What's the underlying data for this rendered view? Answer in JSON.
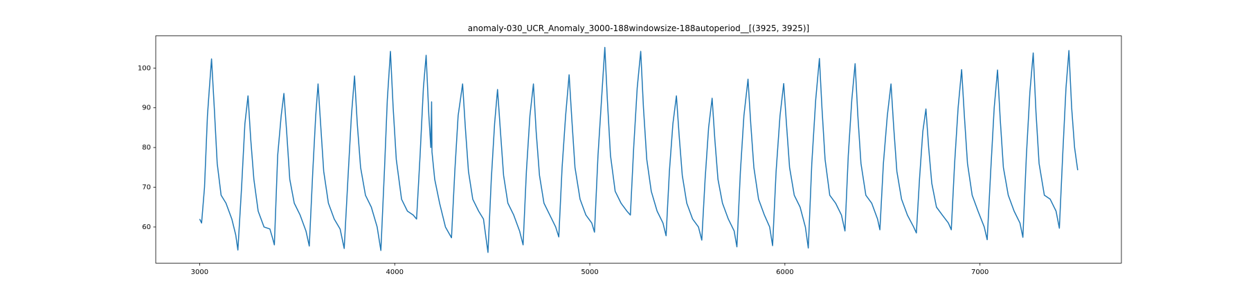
{
  "chart_data": {
    "type": "line",
    "title": "anomaly-030_UCR_Anomaly_3000-188windowsize-188autoperiod__[(3925, 3925)]",
    "color": "#1f77b4",
    "xlim": [
      2775,
      7725
    ],
    "xticks": [
      3000,
      4000,
      5000,
      6000,
      7000
    ],
    "ylim": [
      50.9,
      108.1
    ],
    "yticks": [
      60,
      70,
      80,
      90,
      100
    ],
    "x": [
      3000,
      3010,
      3025,
      3040,
      3050,
      3061,
      3075,
      3090,
      3110,
      3135,
      3165,
      3185,
      3196,
      3215,
      3232,
      3248,
      3262,
      3278,
      3300,
      3330,
      3360,
      3375,
      3383,
      3400,
      3418,
      3432,
      3446,
      3462,
      3485,
      3515,
      3545,
      3562,
      3580,
      3595,
      3607,
      3620,
      3636,
      3660,
      3690,
      3720,
      3741,
      3760,
      3778,
      3794,
      3808,
      3825,
      3850,
      3880,
      3910,
      3929,
      3948,
      3962,
      3978,
      3992,
      4008,
      4035,
      4065,
      4095,
      4112,
      4130,
      4147,
      4161,
      4175,
      4185,
      4189,
      4191,
      4205,
      4230,
      4260,
      4291,
      4308,
      4325,
      4348,
      4362,
      4378,
      4400,
      4430,
      4455,
      4478,
      4495,
      4512,
      4527,
      4542,
      4558,
      4580,
      4610,
      4640,
      4658,
      4675,
      4693,
      4711,
      4725,
      4742,
      4765,
      4795,
      4825,
      4841,
      4858,
      4876,
      4894,
      4908,
      4924,
      4950,
      4980,
      5010,
      5024,
      5042,
      5060,
      5077,
      5090,
      5106,
      5130,
      5160,
      5190,
      5208,
      5225,
      5243,
      5261,
      5275,
      5292,
      5315,
      5345,
      5375,
      5391,
      5408,
      5426,
      5444,
      5458,
      5474,
      5497,
      5527,
      5557,
      5574,
      5591,
      5609,
      5627,
      5641,
      5657,
      5680,
      5710,
      5740,
      5754,
      5772,
      5790,
      5811,
      5825,
      5841,
      5865,
      5895,
      5922,
      5937,
      5955,
      5975,
      5994,
      6008,
      6024,
      6048,
      6078,
      6105,
      6120,
      6138,
      6158,
      6177,
      6190,
      6206,
      6230,
      6260,
      6290,
      6308,
      6325,
      6343,
      6360,
      6374,
      6390,
      6415,
      6445,
      6475,
      6487,
      6505,
      6525,
      6544,
      6558,
      6574,
      6598,
      6628,
      6660,
      6674,
      6690,
      6707,
      6723,
      6737,
      6753,
      6777,
      6807,
      6838,
      6853,
      6870,
      6888,
      6906,
      6920,
      6936,
      6960,
      6990,
      7022,
      7037,
      7055,
      7073,
      7090,
      7104,
      7120,
      7145,
      7175,
      7205,
      7220,
      7238,
      7256,
      7273,
      7287,
      7303,
      7330,
      7360,
      7390,
      7407,
      7424,
      7441,
      7456,
      7470,
      7485,
      7501
    ],
    "values": [
      62,
      61,
      70,
      88,
      95,
      102.3,
      90,
      76,
      68,
      66,
      62,
      58,
      54.2,
      70,
      86,
      93,
      82,
      72,
      64,
      60,
      59.5,
      57,
      55.5,
      78,
      88,
      93.6,
      84,
      72,
      66,
      63,
      59,
      55.2,
      74,
      88,
      96,
      86,
      74,
      66,
      62,
      59.5,
      54.6,
      72,
      88,
      98,
      86,
      75,
      68,
      65,
      60,
      54.1,
      75,
      92,
      104.2,
      90,
      77,
      67,
      64,
      63,
      62,
      78,
      95,
      103.2,
      88,
      80,
      91.5,
      78.9,
      72,
      66,
      60,
      57.3,
      74,
      88,
      96,
      85,
      74,
      67,
      64,
      62,
      53.6,
      72,
      86,
      94.6,
      84,
      73,
      66,
      63,
      59,
      55.5,
      74,
      88,
      96,
      84,
      73,
      66,
      63,
      60,
      57.5,
      75,
      88,
      98.3,
      87,
      75,
      67,
      63,
      61,
      58.7,
      78,
      92,
      105.2,
      92,
      78,
      69,
      66,
      64,
      63,
      80,
      95,
      104.2,
      90,
      77,
      69,
      64,
      61,
      57.8,
      74,
      86,
      93,
      83,
      73,
      66,
      62,
      60,
      56.7,
      72,
      85,
      92.4,
      82,
      72,
      66,
      62,
      59,
      55,
      74,
      88,
      97.2,
      86,
      75,
      67,
      63,
      60,
      55.3,
      74,
      88,
      96.1,
      86,
      75,
      68,
      65,
      60,
      54.7,
      76,
      92,
      102.4,
      90,
      77,
      68,
      66,
      63,
      59,
      78,
      92,
      101.1,
      88,
      76,
      68,
      66,
      62,
      59.3,
      76,
      88,
      96,
      85,
      74,
      67,
      63,
      60,
      58.5,
      72,
      84,
      89.7,
      80,
      71,
      65,
      63,
      61,
      59.3,
      76,
      90,
      99.6,
      88,
      76,
      68,
      64,
      60,
      56.8,
      74,
      90,
      99.5,
      87,
      75,
      68,
      64,
      61,
      57.4,
      78,
      94,
      103.8,
      89,
      76,
      68,
      67,
      64,
      59.7,
      78,
      95,
      104.4,
      90,
      80,
      74.3
    ]
  }
}
